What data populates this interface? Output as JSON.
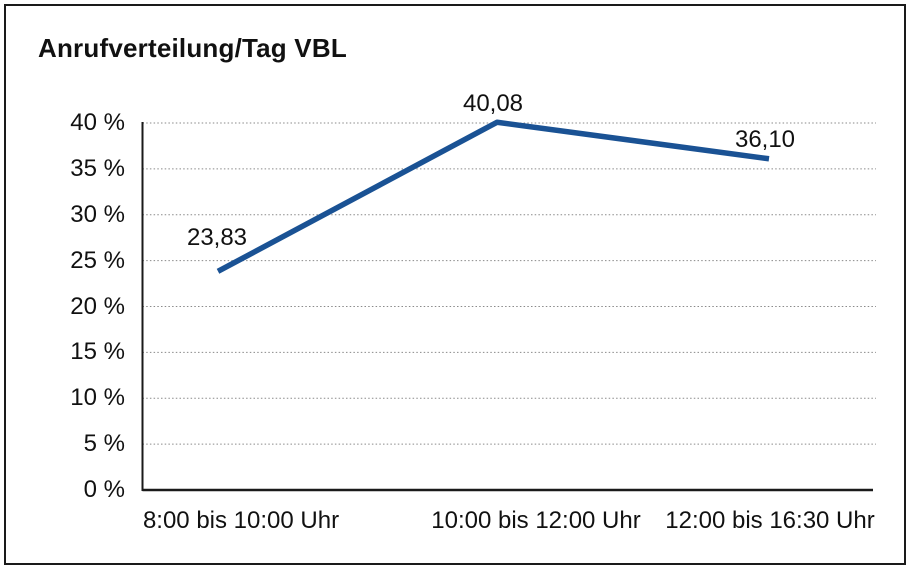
{
  "chart_data": {
    "type": "line",
    "title": "Anrufverteilung/Tag VBL",
    "categories": [
      "8:00 bis 10:00 Uhr",
      "10:00 bis 12:00 Uhr",
      "12:00 bis 16:30 Uhr"
    ],
    "values": [
      23.83,
      40.08,
      36.1
    ],
    "value_labels": [
      "23,83",
      "40,08",
      "36,10"
    ],
    "yticks": [
      0,
      5,
      10,
      15,
      20,
      25,
      30,
      35,
      40
    ],
    "ytick_labels": [
      "0 %",
      "5 %",
      "10 %",
      "15 %",
      "20 %",
      "25 %",
      "30 %",
      "35 %",
      "40 %"
    ],
    "ylim": [
      0,
      40
    ],
    "xlabel": "",
    "ylabel": "",
    "grid": "horizontal-dotted",
    "legend": "none",
    "line_color": "#1A5294",
    "axis_color": "#1a1a1a",
    "gridline_color": "#8a8a8a",
    "frame_border_color": "#1a1a1a"
  }
}
